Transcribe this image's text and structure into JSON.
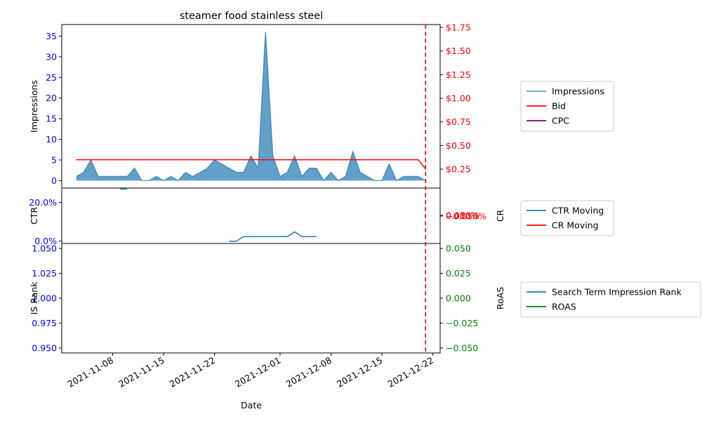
{
  "chart_data": {
    "type": "area",
    "title": "steamer food stainless steel",
    "xlabel": "Date",
    "x_ticks": [
      "2021-11-08",
      "2021-11-15",
      "2021-11-22",
      "2021-12-01",
      "2021-12-08",
      "2021-12-15",
      "2021-12-22"
    ],
    "x_range": [
      "2021-11-01",
      "2021-12-23"
    ],
    "marker_line": {
      "date": "2021-12-21",
      "color": "#ff0000",
      "style": "dashed"
    },
    "panels": [
      {
        "name": "impressions",
        "left_axis": {
          "label": "Impressions",
          "ticks": [
            "0",
            "5",
            "10",
            "15",
            "20",
            "25",
            "30",
            "35"
          ],
          "range": [
            -1.8,
            37.8
          ],
          "color": "#0000ff"
        },
        "right_axis": {
          "label": "",
          "ticks": [
            "$0.25",
            "$0.50",
            "$0.75",
            "$1.00",
            "$1.25",
            "$1.50",
            "$1.75"
          ],
          "range": [
            0.05,
            1.78
          ],
          "color": "#ff0000"
        },
        "legend": [
          "Impressions",
          "Bid",
          "CPC"
        ],
        "series": [
          {
            "name": "Impressions",
            "color": "#1f77b4",
            "dates": [
              "2021-11-03",
              "2021-11-04",
              "2021-11-05",
              "2021-11-06",
              "2021-11-07",
              "2021-11-08",
              "2021-11-09",
              "2021-11-10",
              "2021-11-11",
              "2021-11-12",
              "2021-11-13",
              "2021-11-14",
              "2021-11-15",
              "2021-11-16",
              "2021-11-17",
              "2021-11-18",
              "2021-11-19",
              "2021-11-20",
              "2021-11-21",
              "2021-11-22",
              "2021-11-23",
              "2021-11-24",
              "2021-11-25",
              "2021-11-26",
              "2021-11-27",
              "2021-11-28",
              "2021-11-29",
              "2021-11-30",
              "2021-12-01",
              "2021-12-02",
              "2021-12-03",
              "2021-12-04",
              "2021-12-05",
              "2021-12-06",
              "2021-12-07",
              "2021-12-08",
              "2021-12-09",
              "2021-12-10",
              "2021-12-11",
              "2021-12-12",
              "2021-12-13",
              "2021-12-14",
              "2021-12-15",
              "2021-12-16",
              "2021-12-17",
              "2021-12-18",
              "2021-12-19",
              "2021-12-20",
              "2021-12-21"
            ],
            "values": [
              1,
              2,
              5,
              1,
              1,
              1,
              1,
              1,
              3,
              0,
              0,
              1,
              0,
              1,
              0,
              2,
              1,
              2,
              3,
              5,
              4,
              3,
              2,
              2,
              6,
              3,
              36,
              6,
              1,
              2,
              6,
              1,
              3,
              3,
              0,
              2,
              0,
              1,
              7,
              2,
              1,
              0,
              0,
              4,
              0,
              1,
              1,
              1,
              0
            ]
          },
          {
            "name": "Bid",
            "color": "#ff0000",
            "dates": [
              "2021-11-03",
              "2021-12-20",
              "2021-12-21"
            ],
            "values": [
              0.35,
              0.35,
              0.25
            ]
          },
          {
            "name": "CPC",
            "color": "#800080",
            "dates": [],
            "values": []
          }
        ]
      },
      {
        "name": "ctr-cr",
        "left_axis": {
          "label": "CTR",
          "ticks": [
            "0.0%",
            "20.0%"
          ],
          "range": [
            -0.012,
            0.275
          ],
          "color": "#0000ff"
        },
        "right_axis": {
          "label": "CR",
          "ticks": [
            "−0.050%",
            "0.000%",
            "0.050%"
          ],
          "range": [
            -0.05,
            0.05
          ],
          "color": "#ff0000"
        },
        "legend": [
          "CTR Moving",
          "CR Moving"
        ],
        "series": [
          {
            "name": "CTR Moving",
            "color": "#1f77b4",
            "segments": [
              {
                "dates": [
                  "2021-11-09",
                  "2021-11-10"
                ],
                "values": [
                  0.27,
                  0.27
                ]
              },
              {
                "dates": [
                  "2021-11-24",
                  "2021-11-25",
                  "2021-11-26",
                  "2021-11-27",
                  "2021-11-28",
                  "2021-11-29",
                  "2021-11-30",
                  "2021-12-01",
                  "2021-12-02",
                  "2021-12-03",
                  "2021-12-04",
                  "2021-12-05",
                  "2021-12-06"
                ],
                "values": [
                  0.0,
                  0.0,
                  0.024,
                  0.024,
                  0.024,
                  0.024,
                  0.024,
                  0.024,
                  0.024,
                  0.048,
                  0.024,
                  0.024,
                  0.024
                ]
              }
            ]
          },
          {
            "name": "CR Moving",
            "color": "#ff0000",
            "segments": []
          }
        ]
      },
      {
        "name": "rank-roas",
        "left_axis": {
          "label": "IS Rank",
          "ticks": [
            "0.950",
            "0.975",
            "1.000",
            "1.025",
            "1.050"
          ],
          "range": [
            0.945,
            1.055
          ],
          "color": "#0000ff"
        },
        "right_axis": {
          "label": "RoAS",
          "ticks": [
            "−0.050",
            "−0.025",
            "0.000",
            "0.025",
            "0.050"
          ],
          "range": [
            -0.055,
            0.055
          ],
          "color": "#008000"
        },
        "legend": [
          "Search Term Impression Rank",
          "ROAS"
        ],
        "series": [
          {
            "name": "Search Term Impression Rank",
            "color": "#1f77b4",
            "dates": [],
            "values": []
          },
          {
            "name": "ROAS",
            "color": "#008000",
            "dates": [],
            "values": []
          }
        ]
      }
    ]
  }
}
